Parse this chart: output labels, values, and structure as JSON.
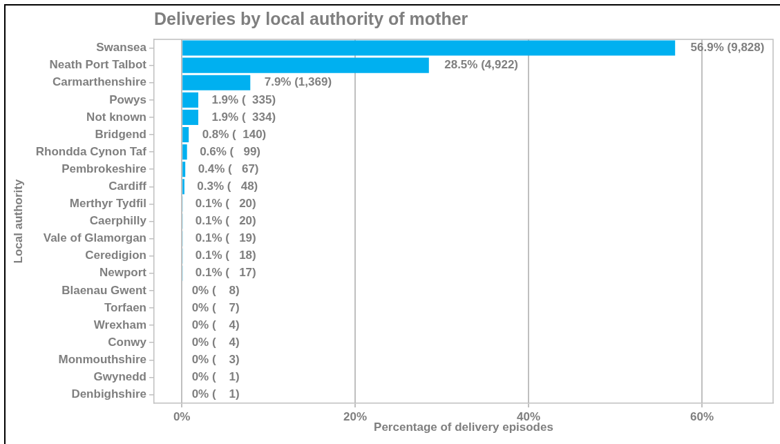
{
  "chart_data": {
    "type": "bar",
    "orientation": "horizontal",
    "title": "Deliveries by local authority of mother",
    "xlabel": "Percentage of delivery episodes",
    "ylabel": "Local authority",
    "categories": [
      "Swansea",
      "Neath Port Talbot",
      "Carmarthenshire",
      "Powys",
      "Not known",
      "Bridgend",
      "Rhondda Cynon Taf",
      "Pembrokeshire",
      "Cardiff",
      "Merthyr Tydfil",
      "Caerphilly",
      "Vale of Glamorgan",
      "Ceredigion",
      "Newport",
      "Blaenau Gwent",
      "Torfaen",
      "Wrexham",
      "Conwy",
      "Monmouthshire",
      "Gwynedd",
      "Denbighshire"
    ],
    "values": [
      56.9,
      28.5,
      7.9,
      1.9,
      1.9,
      0.8,
      0.6,
      0.4,
      0.3,
      0.1,
      0.1,
      0.1,
      0.1,
      0.1,
      0,
      0,
      0,
      0,
      0,
      0,
      0
    ],
    "value_labels": [
      "56.9% (9,828)",
      "28.5% (4,922)",
      "7.9% (1,369)",
      "1.9% (  335)",
      "1.9% (  334)",
      "0.8% (  140)",
      "0.6% (   99)",
      "0.4% (   67)",
      "0.3% (   48)",
      "0.1% (   20)",
      "0.1% (   20)",
      "0.1% (   19)",
      "0.1% (   18)",
      "0.1% (   17)",
      "0% (    8)",
      "0% (    7)",
      "0% (    4)",
      "0% (    4)",
      "0% (    3)",
      "0% (    1)",
      "0% (    1)"
    ],
    "color": "#00b0f0",
    "xlim": [
      -3.2,
      68.2
    ],
    "xticks": [
      {
        "value": 0,
        "label": "0%"
      },
      {
        "value": 20,
        "label": "20%"
      },
      {
        "value": 40,
        "label": "40%"
      },
      {
        "value": 60,
        "label": "60%"
      }
    ],
    "grid": "x"
  }
}
